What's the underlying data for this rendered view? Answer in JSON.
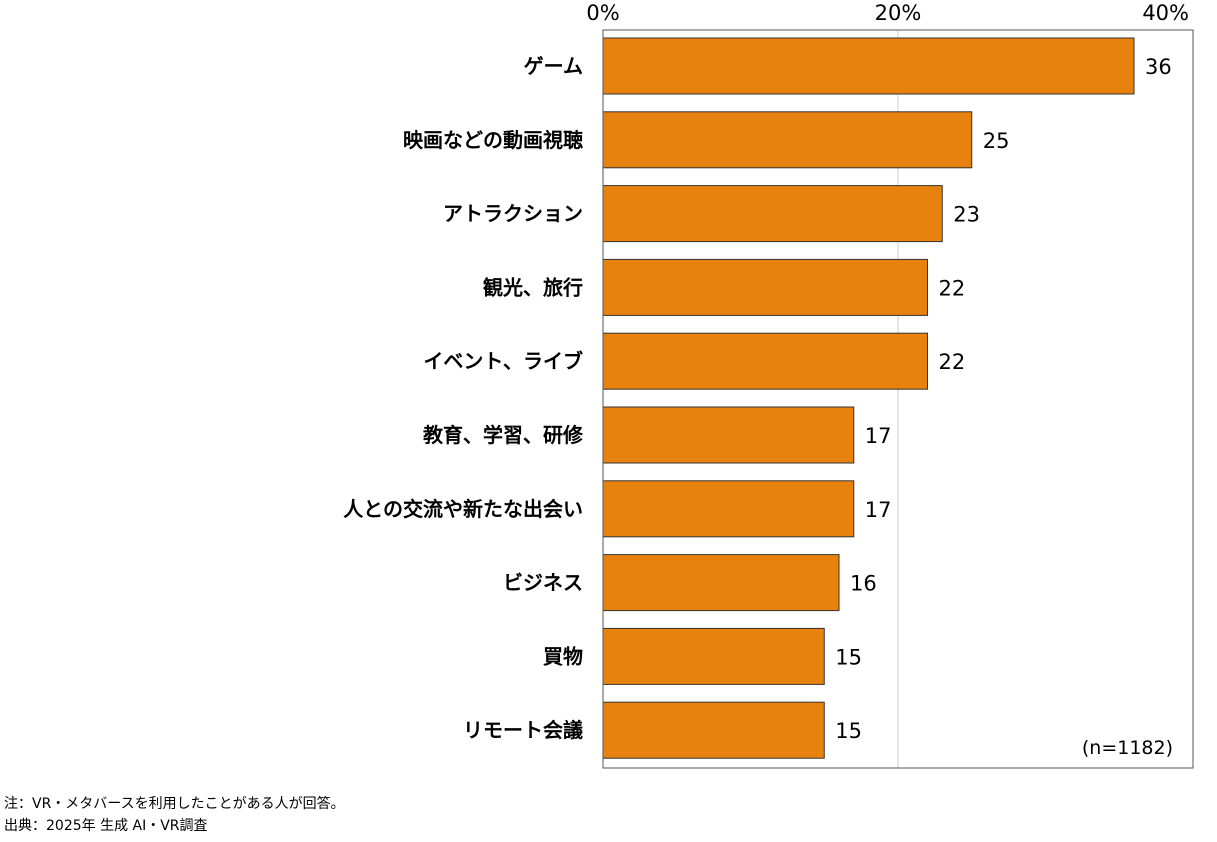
{
  "chart_data": {
    "type": "bar",
    "orientation": "horizontal",
    "categories": [
      "ゲーム",
      "映画などの動画視聴",
      "アトラクション",
      "観光、旅行",
      "イベント、ライブ",
      "教育、学習、研修",
      "人との交流や新たな出会い",
      "ビジネス",
      "買物",
      "リモート会議"
    ],
    "values": [
      36,
      25,
      23,
      22,
      22,
      17,
      17,
      16,
      15,
      15
    ],
    "value_labels": [
      "36",
      "25",
      "23",
      "22",
      "22",
      "17",
      "17",
      "16",
      "15",
      "15"
    ],
    "xlim": [
      0,
      40
    ],
    "ticks": [
      0,
      20,
      40
    ],
    "tick_labels": [
      "0%",
      "20%",
      "40%"
    ],
    "axis_position": "top",
    "grid": true,
    "bar_color": "#E8820F",
    "bar_edge_color": "#333333",
    "sample_note": "(n=1182)"
  },
  "footnotes": {
    "note": "注：VR・メタバースを利用したことがある人が回答。",
    "source": "出典：2025年 生成 AI・VR調査"
  }
}
